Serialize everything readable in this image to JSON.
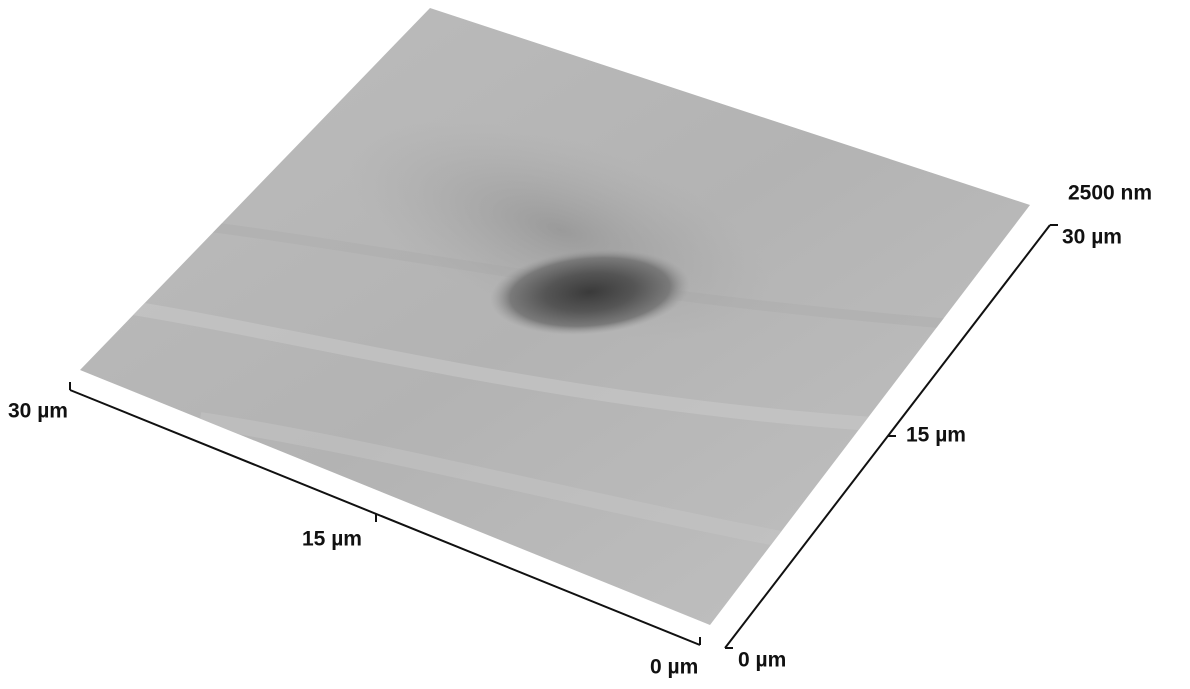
{
  "z_scale": "2500 nm",
  "x_axis": {
    "labels": [
      "0 µm",
      "15 µm",
      "30 µm"
    ]
  },
  "y_axis": {
    "labels": [
      "0 µm",
      "15 µm",
      "30 µm"
    ]
  }
}
